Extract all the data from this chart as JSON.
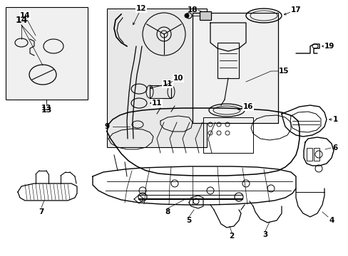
{
  "background_color": "#ffffff",
  "line_color": "#000000",
  "fig_width": 4.89,
  "fig_height": 3.6,
  "dpi": 100,
  "shaded_box_color": "#e8e8e8",
  "label_fontsize": 7.5
}
